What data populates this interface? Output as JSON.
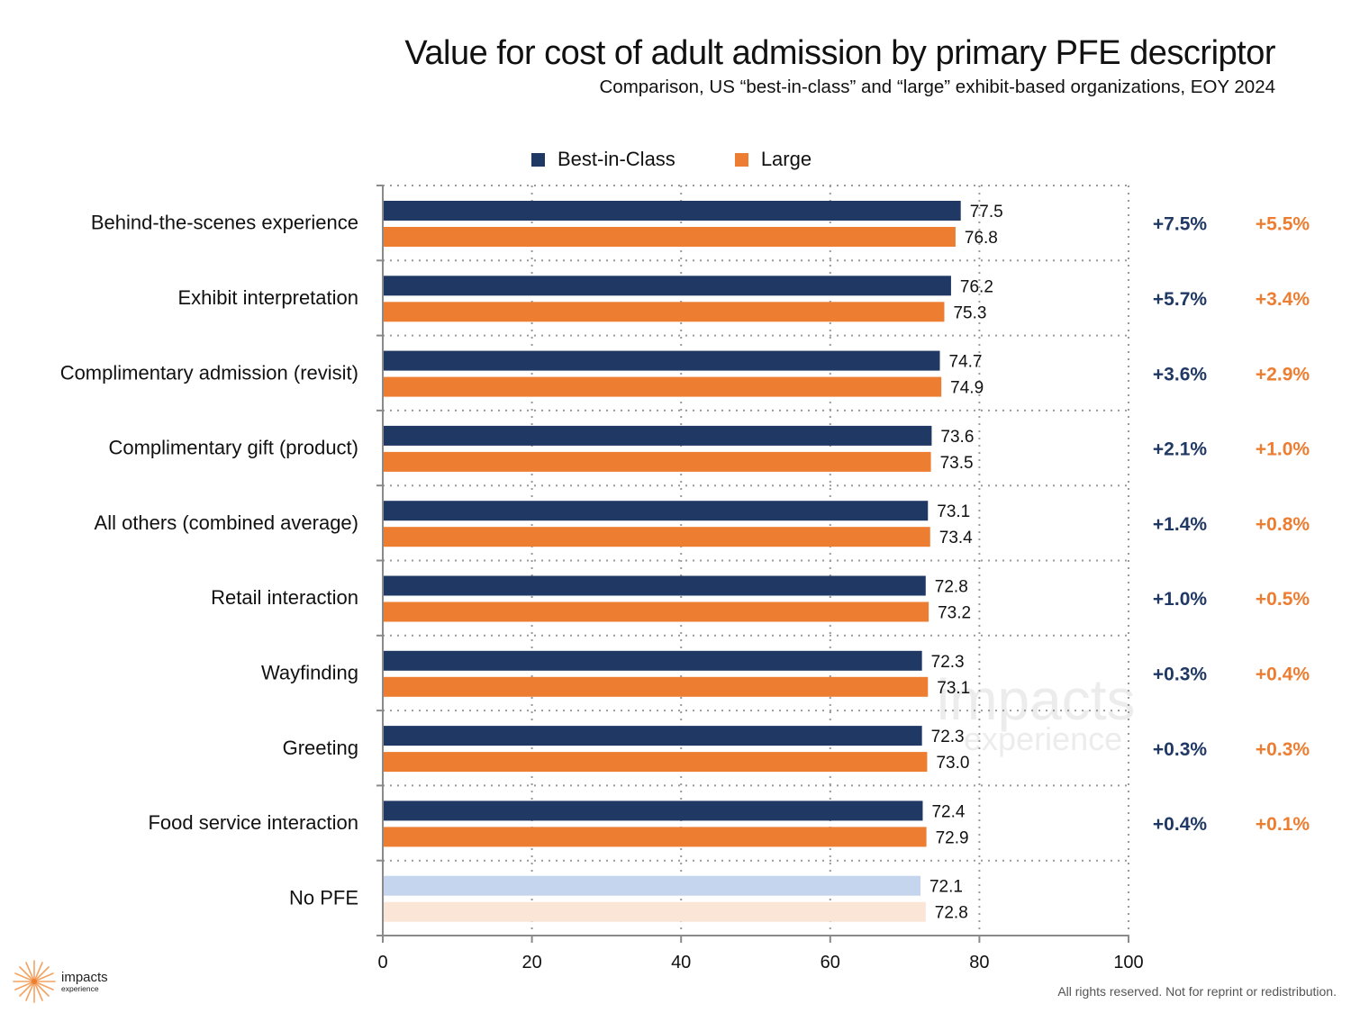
{
  "header": {
    "title": "Value for cost of adult admission by primary PFE descriptor",
    "subtitle": "Comparison, US “best-in-class” and “large” exhibit-based organizations, EOY 2024"
  },
  "legend": [
    {
      "name": "Best-in-Class",
      "color": "#203864"
    },
    {
      "name": "Large",
      "color": "#ED7D31"
    }
  ],
  "chart_data": {
    "type": "bar",
    "orientation": "horizontal",
    "title": "Value for cost of adult admission by primary PFE descriptor",
    "subtitle": "Comparison, US “best-in-class” and “large” exhibit-based organizations, EOY 2024",
    "xlabel": "",
    "ylabel": "",
    "xlim": [
      0,
      100
    ],
    "xticks": [
      0,
      20,
      40,
      60,
      80,
      100
    ],
    "grid": true,
    "legend_position": "top",
    "categories": [
      "Behind-the-scenes experience",
      "Exhibit interpretation",
      "Complimentary admission (revisit)",
      "Complimentary gift (product)",
      "All others (combined average)",
      "Retail interaction",
      "Wayfinding",
      "Greeting",
      "Food service interaction",
      "No PFE"
    ],
    "series": [
      {
        "name": "Best-in-Class",
        "color": "#203864",
        "baseline_color": "#C5D5EE",
        "values": [
          77.5,
          76.2,
          74.7,
          73.6,
          73.1,
          72.8,
          72.3,
          72.3,
          72.4,
          72.1
        ],
        "labels": [
          "77.5",
          "76.2",
          "74.7",
          "73.6",
          "73.1",
          "72.8",
          "72.3",
          "72.3",
          "72.4",
          "72.1"
        ],
        "pct_vs_no_pfe": [
          "+7.5%",
          "+5.7%",
          "+3.6%",
          "+2.1%",
          "+1.4%",
          "+1.0%",
          "+0.3%",
          "+0.3%",
          "+0.4%",
          null
        ]
      },
      {
        "name": "Large",
        "color": "#ED7D31",
        "baseline_color": "#FBE5D6",
        "values": [
          76.8,
          75.3,
          74.9,
          73.5,
          73.4,
          73.2,
          73.1,
          73.0,
          72.9,
          72.8
        ],
        "labels": [
          "76.8",
          "75.3",
          "74.9",
          "73.5",
          "73.4",
          "73.2",
          "73.1",
          "73.0",
          "72.9",
          "72.8"
        ],
        "pct_vs_no_pfe": [
          "+5.5%",
          "+3.4%",
          "+2.9%",
          "+1.0%",
          "+0.8%",
          "+0.5%",
          "+0.4%",
          "+0.3%",
          "+0.1%",
          null
        ]
      }
    ],
    "baseline_category": "No PFE"
  },
  "branding": {
    "logo_line1": "impacts",
    "logo_line2": "experience",
    "watermark_line1": "impacts",
    "watermark_line2": "experience",
    "logo_color": "#F4A261"
  },
  "footer": {
    "rights": "All rights reserved. Not for reprint or redistribution."
  }
}
